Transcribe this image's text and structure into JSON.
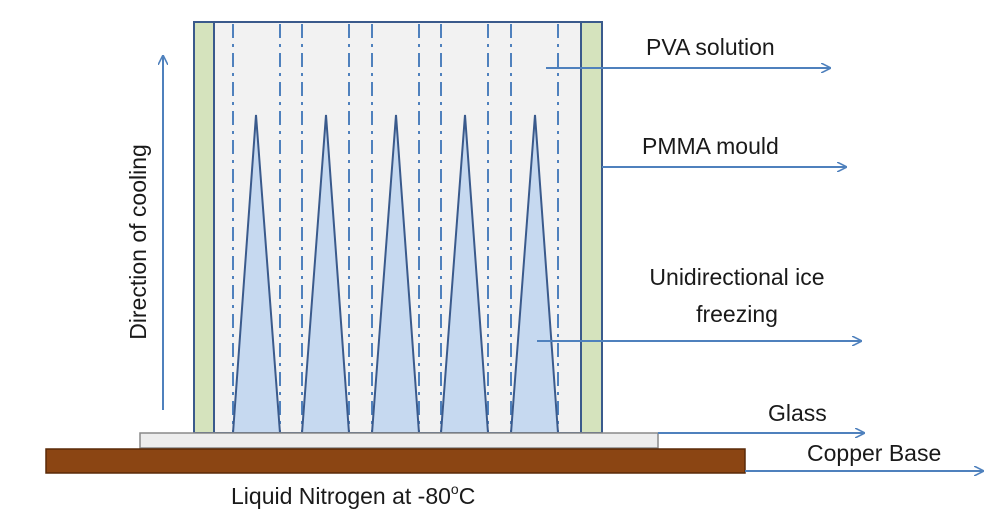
{
  "labels": {
    "direction": "Direction of cooling",
    "pva": "PVA solution",
    "pmma": "PMMA mould",
    "ice_line1": "Unidirectional ice",
    "ice_line2": "freezing",
    "glass": "Glass",
    "copper": "Copper Base",
    "nitrogen_main": "Liquid Nitrogen at -80",
    "nitrogen_sup": "o",
    "nitrogen_unit": "C"
  },
  "colors": {
    "mould_wall": "#d5e3bd",
    "solution_fill": "#f2f2f2",
    "ice_fill": "#c6d9f0",
    "arrow": "#4f81bd",
    "glass_fill": "#ededed",
    "copper_fill": "#8b4513",
    "outline": "#3a5a8c"
  },
  "ice_crystal_count": 5
}
